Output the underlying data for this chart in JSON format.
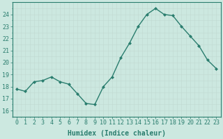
{
  "x": [
    0,
    1,
    2,
    3,
    4,
    5,
    6,
    7,
    8,
    9,
    10,
    11,
    12,
    13,
    14,
    15,
    16,
    17,
    18,
    19,
    20,
    21,
    22,
    23
  ],
  "y": [
    17.8,
    17.6,
    18.4,
    18.5,
    18.8,
    18.4,
    18.2,
    17.4,
    16.6,
    16.5,
    18.0,
    18.8,
    20.4,
    21.6,
    23.0,
    24.0,
    24.5,
    24.0,
    23.9,
    23.0,
    22.2,
    21.4,
    20.2,
    19.5
  ],
  "line_color": "#2a7d6e",
  "marker": "D",
  "markersize": 2.0,
  "linewidth": 1.0,
  "bg_color": "#cce8e0",
  "grid_color_major": "#c0d8d0",
  "grid_color_minor": "#c0d8d0",
  "xlabel": "Humidex (Indice chaleur)",
  "xlabel_fontsize": 7,
  "tick_fontsize": 6,
  "yticks": [
    16,
    17,
    18,
    19,
    20,
    21,
    22,
    23,
    24
  ],
  "xticks": [
    0,
    1,
    2,
    3,
    4,
    5,
    6,
    7,
    8,
    9,
    10,
    11,
    12,
    13,
    14,
    15,
    16,
    17,
    18,
    19,
    20,
    21,
    22,
    23
  ],
  "ylim": [
    15.5,
    25.0
  ],
  "xlim": [
    -0.5,
    23.5
  ]
}
